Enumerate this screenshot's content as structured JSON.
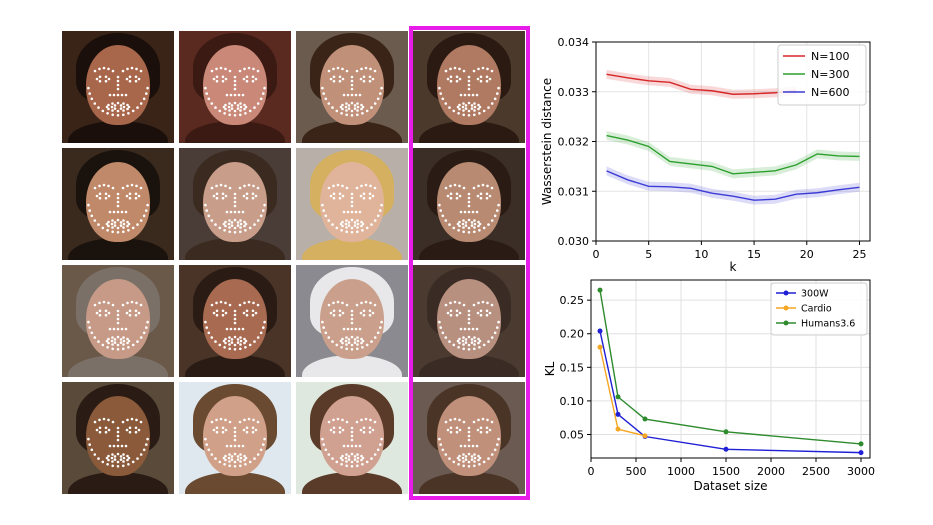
{
  "colors": {
    "highlight": "#e81ce8",
    "n100": "#d62728",
    "n300": "#2ca02c",
    "n600": "#3b3bd6",
    "w300": "#1f1fd6",
    "cardio": "#f5a623",
    "humans": "#2e8b2e"
  },
  "icons": [
    "face-photo",
    "landmark-dots"
  ],
  "chart_data": [
    {
      "type": "line",
      "xlabel": "k",
      "ylabel": "Wasserstein distance",
      "xlim": [
        0,
        26
      ],
      "ylim": [
        0.03,
        0.034
      ],
      "xticks": [
        "0",
        "5",
        "10",
        "15",
        "20",
        "25"
      ],
      "yticks": [
        "0.030",
        "0.031",
        "0.032",
        "0.033",
        "0.034"
      ],
      "grid": true,
      "legend_position": "top-right",
      "shaded_band": true,
      "series": [
        {
          "name": "N=100",
          "color": "#d62728",
          "x": [
            1,
            3,
            5,
            7,
            9,
            11,
            13,
            15,
            17,
            19
          ],
          "y": [
            0.03335,
            0.03328,
            0.03322,
            0.03319,
            0.03305,
            0.03302,
            0.03295,
            0.03296,
            0.03298,
            0.03302
          ]
        },
        {
          "name": "N=300",
          "color": "#2ca02c",
          "x": [
            1,
            3,
            5,
            7,
            9,
            11,
            13,
            15,
            17,
            19,
            21,
            23,
            25
          ],
          "y": [
            0.03212,
            0.03203,
            0.0319,
            0.0316,
            0.03155,
            0.0315,
            0.03135,
            0.03138,
            0.03141,
            0.03153,
            0.03175,
            0.03171,
            0.0317
          ]
        },
        {
          "name": "N=600",
          "color": "#3b3bd6",
          "x": [
            1,
            3,
            5,
            7,
            9,
            11,
            13,
            15,
            17,
            19,
            21,
            23,
            25
          ],
          "y": [
            0.03141,
            0.03123,
            0.0311,
            0.03109,
            0.03106,
            0.03096,
            0.0309,
            0.03082,
            0.03084,
            0.03094,
            0.03097,
            0.03103,
            0.03108
          ]
        }
      ]
    },
    {
      "type": "line",
      "xlabel": "Dataset size",
      "ylabel": "KL",
      "xlim": [
        0,
        3100
      ],
      "ylim": [
        0.015,
        0.28
      ],
      "xticks": [
        "0",
        "500",
        "1000",
        "1500",
        "2000",
        "2500",
        "3000"
      ],
      "yticks": [
        "0.05",
        "0.10",
        "0.15",
        "0.20",
        "0.25"
      ],
      "grid": true,
      "legend_position": "top-right",
      "series": [
        {
          "name": "300W",
          "color": "#1f1fd6",
          "x": [
            100,
            300,
            600,
            1500,
            3000
          ],
          "y": [
            0.204,
            0.08,
            0.047,
            0.028,
            0.023
          ]
        },
        {
          "name": "Cardio",
          "color": "#f5a623",
          "x": [
            100,
            300,
            600
          ],
          "y": [
            0.18,
            0.058,
            0.048
          ]
        },
        {
          "name": "Humans3.6",
          "color": "#2e8b2e",
          "x": [
            100,
            300,
            600,
            1500,
            3000
          ],
          "y": [
            0.265,
            0.106,
            0.073,
            0.054,
            0.036
          ]
        }
      ]
    }
  ]
}
